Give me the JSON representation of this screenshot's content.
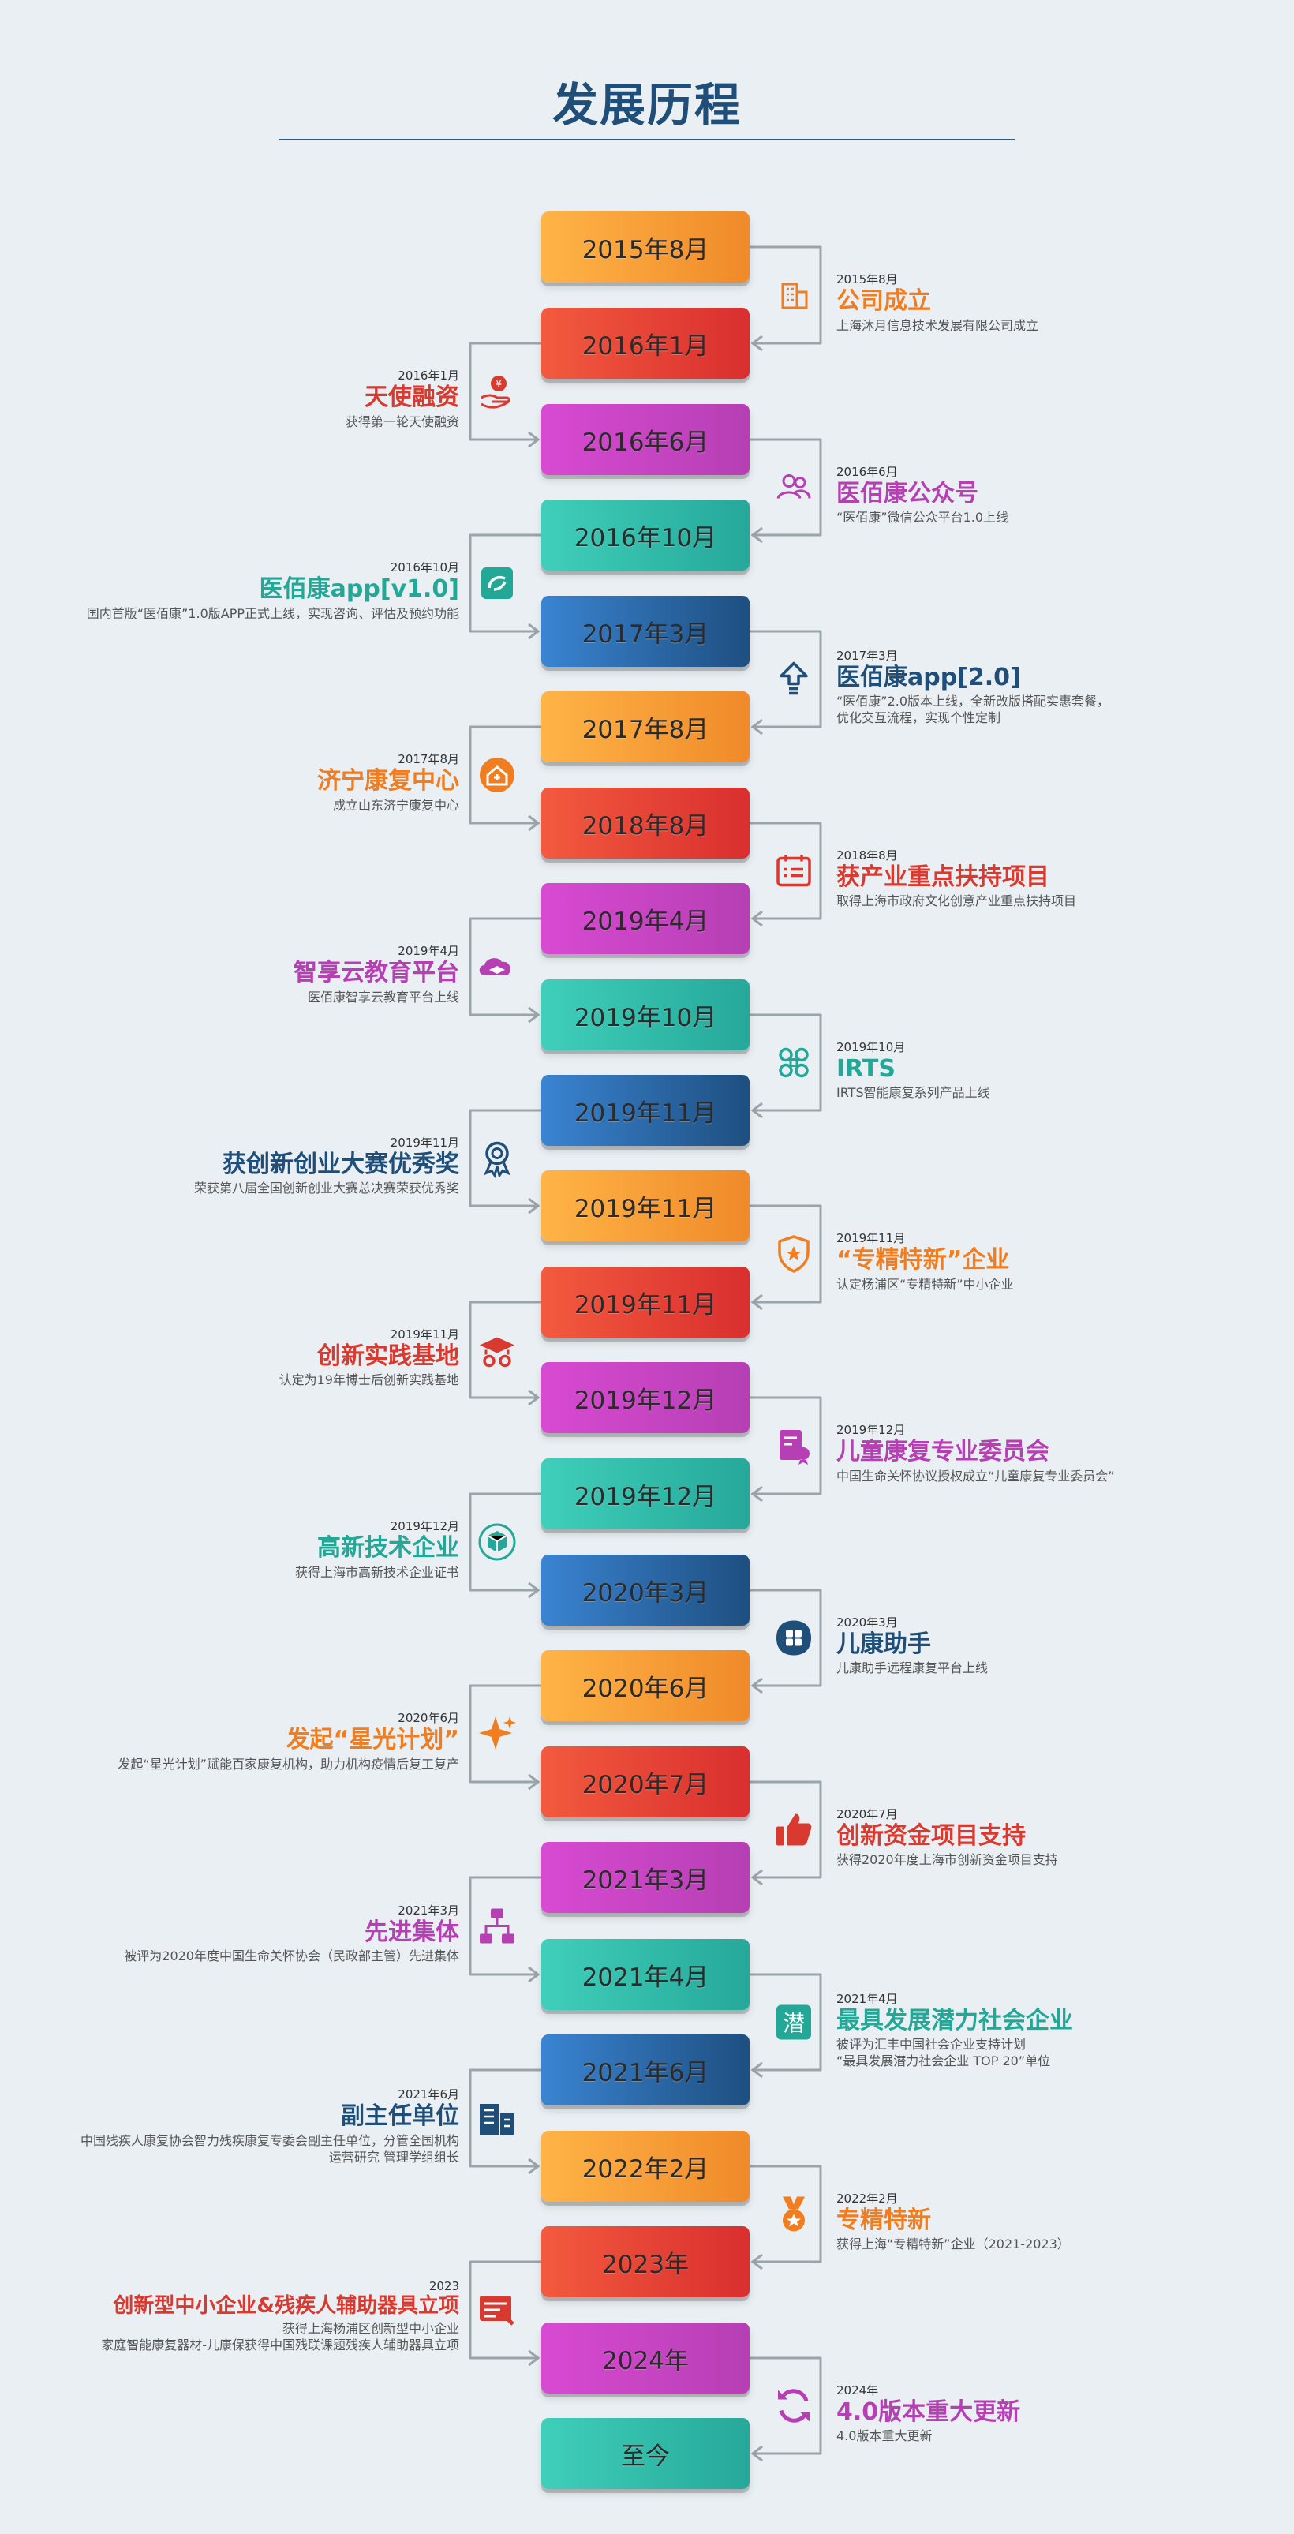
{
  "title": "发展历程",
  "timeline": [
    {
      "year": "2015年8月",
      "date": "2015年8月",
      "title": "公司成立",
      "desc": [
        "上海沐月信息技术发展有限公司成立"
      ],
      "icon": "building-icon"
    },
    {
      "year": "2016年1月",
      "date": "2016年1月",
      "title": "天使融资",
      "desc": [
        "获得第一轮天使融资"
      ],
      "icon": "money-hand-icon"
    },
    {
      "year": "2016年6月",
      "date": "2016年6月",
      "title": "医佰康公众号",
      "desc": [
        "“医佰康”微信公众平台1.0上线"
      ],
      "icon": "users-icon"
    },
    {
      "year": "2016年10月",
      "date": "2016年10月",
      "title": "医佰康app[v1.0]",
      "desc": [
        "国内首版“医佰康”1.0版APP正式上线，实现咨询、评估及预约功能"
      ],
      "icon": "app-icon"
    },
    {
      "year": "2017年3月",
      "date": "2017年3月",
      "title": "医佰康app[2.0]",
      "desc": [
        "“医佰康”2.0版本上线，全新改版搭配实惠套餐，",
        "优化交互流程，实现个性定制"
      ],
      "icon": "upgrade-icon"
    },
    {
      "year": "2017年8月",
      "date": "2017年8月",
      "title": "济宁康复中心",
      "desc": [
        "成立山东济宁康复中心"
      ],
      "icon": "clinic-icon"
    },
    {
      "year": "2018年8月",
      "date": "2018年8月",
      "title": "获产业重点扶持项目",
      "desc": [
        "取得上海市政府文化创意产业重点扶持项目"
      ],
      "icon": "calendar-icon"
    },
    {
      "year": "2019年4月",
      "date": "2019年4月",
      "title": "智享云教育平台",
      "desc": [
        "医佰康智享云教育平台上线"
      ],
      "icon": "cloud-education-icon"
    },
    {
      "year": "2019年10月",
      "date": "2019年10月",
      "title": "IRTS",
      "desc": [
        "IRTS智能康复系列产品上线"
      ],
      "icon": "command-icon"
    },
    {
      "year": "2019年11月",
      "date": "2019年11月",
      "title": "获创新创业大赛优秀奖",
      "desc": [
        "荣获第八届全国创新创业大赛总决赛荣获优秀奖"
      ],
      "icon": "award-ribbon-icon"
    },
    {
      "year": "2019年11月",
      "date": "2019年11月",
      "title": "“专精特新”企业",
      "desc": [
        "认定杨浦区“专精特新”中小企业"
      ],
      "icon": "shield-star-icon"
    },
    {
      "year": "2019年11月",
      "date": "2019年11月",
      "title": "创新实践基地",
      "desc": [
        "认定为19年博士后创新实践基地"
      ],
      "icon": "graduation-cap-icon"
    },
    {
      "year": "2019年12月",
      "date": "2019年12月",
      "title": "儿童康复专业委员会",
      "desc": [
        "中国生命关怀协议授权成立“儿童康复专业委员会”"
      ],
      "icon": "certificate-icon"
    },
    {
      "year": "2019年12月",
      "date": "2019年12月",
      "title": "高新技术企业",
      "desc": [
        "获得上海市高新技术企业证书"
      ],
      "icon": "cube-icon"
    },
    {
      "year": "2020年3月",
      "date": "2020年3月",
      "title": "儿康助手",
      "desc": [
        "儿康助手远程康复平台上线"
      ],
      "icon": "assistant-icon"
    },
    {
      "year": "2020年6月",
      "date": "2020年6月",
      "title": "发起“星光计划”",
      "desc": [
        "发起“星光计划”赋能百家康复机构，助力机构疫情后复工复产"
      ],
      "icon": "sparkle-icon"
    },
    {
      "year": "2020年7月",
      "date": "2020年7月",
      "title": "创新资金项目支持",
      "desc": [
        "获得2020年度上海市创新资金项目支持"
      ],
      "icon": "thumbs-up-icon"
    },
    {
      "year": "2021年3月",
      "date": "2021年3月",
      "title": "先进集体",
      "desc": [
        "被评为2020年度中国生命关怀协会（民政部主管）先进集体"
      ],
      "icon": "org-chart-icon"
    },
    {
      "year": "2021年4月",
      "date": "2021年4月",
      "title": "最具发展潜力社会企业",
      "desc": [
        "被评为汇丰中国社会企业支持计划",
        "“最具发展潜力社会企业 TOP 20”单位"
      ],
      "icon": "potential-icon"
    },
    {
      "year": "2021年6月",
      "date": "2021年6月",
      "title": "副主任单位",
      "desc": [
        "中国残疾人康复协会智力残疾康复专委会副主任单位，分管全国机构",
        "运营研究  管理学组组长"
      ],
      "icon": "office-buildings-icon"
    },
    {
      "year": "2022年2月",
      "date": "2022年2月",
      "title": "专精特新",
      "desc": [
        "获得上海“专精特新”企业（2021-2023）"
      ],
      "icon": "medal-icon"
    },
    {
      "year": "2023年",
      "date": "2023",
      "title": "创新型中小企业&残疾人辅助器具立项",
      "desc": [
        "获得上海杨浦区创新型中小企业",
        "家庭智能康复器材-儿康保获得中国残联课题残疾人辅助器具立项"
      ],
      "icon": "document-icon"
    },
    {
      "year": "2024年",
      "date": "2024年",
      "title": "4.0版本重大更新",
      "desc": [
        "4.0版本重大更新"
      ],
      "icon": "refresh-icon"
    },
    {
      "year": "至今",
      "date": "",
      "title": "",
      "desc": [],
      "icon": ""
    }
  ],
  "colors": {
    "orange": "#f07d1f",
    "red": "#d93a30",
    "pink": "#b63fb4",
    "teal": "#23a897",
    "blue": "#1f4e79",
    "background": "#e9eff3",
    "connector": "#9aa4ab"
  }
}
